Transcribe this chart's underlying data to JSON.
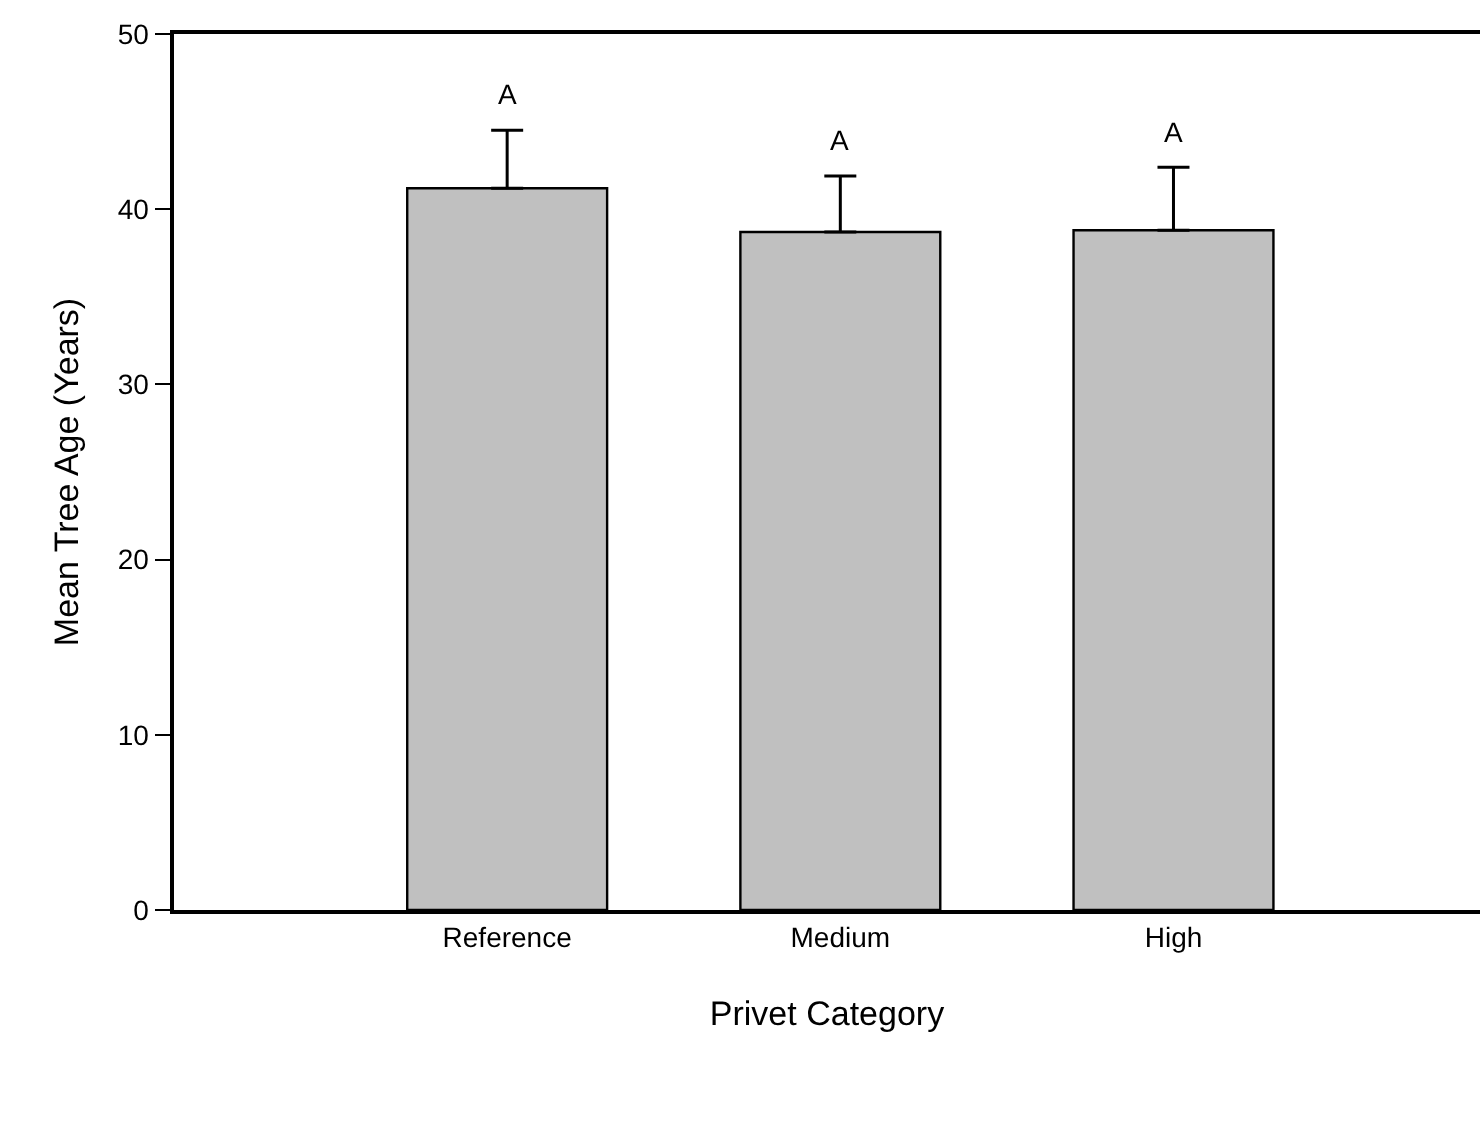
{
  "chart_data": {
    "type": "bar",
    "xlabel": "Privet Category",
    "ylabel": "Mean Tree Age (Years)",
    "categories": [
      "Reference",
      "Medium",
      "High"
    ],
    "values": [
      41.2,
      38.7,
      38.8
    ],
    "errors": [
      [
        41.2,
        44.5
      ],
      [
        38.7,
        41.9
      ],
      [
        38.8,
        42.4
      ]
    ],
    "color": "#c0c0c0",
    "ylim": [
      0,
      50
    ],
    "yticks": [
      0,
      10,
      20,
      30,
      40,
      50
    ],
    "annotations": [
      {
        "text": "A",
        "x": "Reference",
        "y": 44.5
      },
      {
        "text": "A",
        "x": "Medium",
        "y": 41.9
      },
      {
        "text": "A",
        "x": "High",
        "y": 42.4
      }
    ]
  }
}
